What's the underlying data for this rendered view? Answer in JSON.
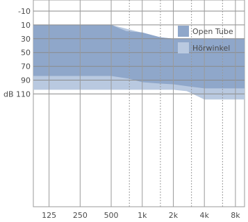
{
  "chart_data": {
    "type": "area",
    "title": "",
    "xlabel": "",
    "ylabel": "",
    "x_scale": "log",
    "y_inverted": true,
    "ylim": [
      -10,
      120
    ],
    "x_ticks": [
      {
        "label": "125",
        "hz": 125
      },
      {
        "label": "250",
        "hz": 250
      },
      {
        "label": "500",
        "hz": 500
      },
      {
        "label": "1k",
        "hz": 1000
      },
      {
        "label": "2k",
        "hz": 2000
      },
      {
        "label": "4k",
        "hz": 4000
      },
      {
        "label": "8k",
        "hz": 8000
      }
    ],
    "x_minor_ticks_hz": [
      750,
      1500,
      3000,
      6000
    ],
    "y_ticks": [
      {
        "label": "-10",
        "db": -10
      },
      {
        "label": "10",
        "db": 10
      },
      {
        "label": "30",
        "db": 30
      },
      {
        "label": "50",
        "db": 50
      },
      {
        "label": "70",
        "db": 70
      },
      {
        "label": "90",
        "db": 90
      },
      {
        "label": "dB 110",
        "db": 110
      }
    ],
    "grid": true,
    "legend_position": "top-right",
    "series": [
      {
        "name": "Hörwinkel",
        "color": "#b9c9e0",
        "upper": [
          [
            88,
            10
          ],
          [
            500,
            10
          ],
          [
            1500,
            28
          ],
          [
            2000,
            30
          ],
          [
            9800,
            30
          ]
        ],
        "lower": [
          [
            88,
            104
          ],
          [
            2000,
            104
          ],
          [
            2700,
            106
          ],
          [
            4000,
            118
          ],
          [
            9800,
            118
          ]
        ]
      },
      {
        "name": "Open Tube",
        "color": "#8fa7ca",
        "upper": [
          [
            88,
            10
          ],
          [
            500,
            10
          ],
          [
            700,
            19
          ],
          [
            1000,
            21
          ],
          [
            1500,
            28
          ],
          [
            2000,
            30
          ],
          [
            9800,
            30
          ]
        ],
        "lower": [
          [
            88,
            84
          ],
          [
            500,
            84
          ],
          [
            750,
            88
          ],
          [
            1000,
            93
          ],
          [
            1500,
            95
          ],
          [
            2000,
            96
          ],
          [
            2800,
            99
          ],
          [
            4000,
            102
          ],
          [
            9800,
            102
          ]
        ]
      }
    ]
  }
}
